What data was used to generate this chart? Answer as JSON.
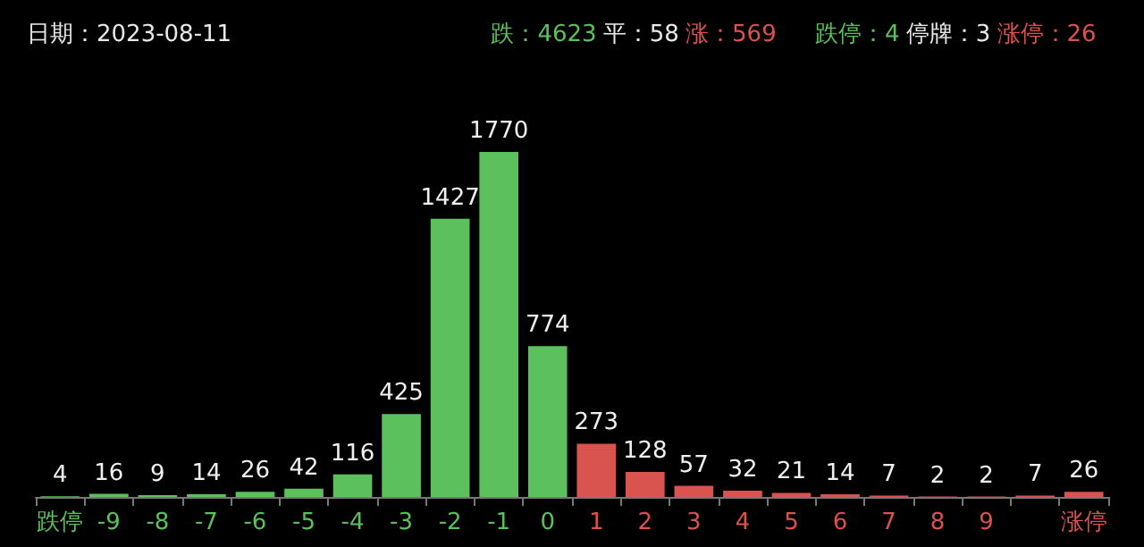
{
  "chart_data": {
    "type": "bar",
    "title": "日期：2023-08-11",
    "annotations": [
      "跌：4623",
      "平：58",
      "涨：569",
      "跌停：4",
      "停牌：3",
      "涨停：26"
    ],
    "categories": [
      "跌停",
      "-9",
      "-8",
      "-7",
      "-6",
      "-5",
      "-4",
      "-3",
      "-2",
      "-1",
      "0",
      "1",
      "2",
      "3",
      "4",
      "5",
      "6",
      "7",
      "8",
      "9",
      null,
      "涨停"
    ],
    "values": [
      4,
      16,
      9,
      14,
      26,
      42,
      116,
      425,
      1427,
      1770,
      774,
      273,
      128,
      57,
      32,
      21,
      14,
      7,
      2,
      2,
      7,
      26
    ],
    "colors": [
      "#5cc15c",
      "#5cc15c",
      "#5cc15c",
      "#5cc15c",
      "#5cc15c",
      "#5cc15c",
      "#5cc15c",
      "#5cc15c",
      "#5cc15c",
      "#5cc15c",
      "#5cc15c",
      "#d9534f",
      "#d9534f",
      "#d9534f",
      "#d9534f",
      "#d9534f",
      "#d9534f",
      "#d9534f",
      "#d9534f",
      "#d9534f",
      "#d9534f",
      "#d9534f"
    ],
    "data_labels": true
  }
}
